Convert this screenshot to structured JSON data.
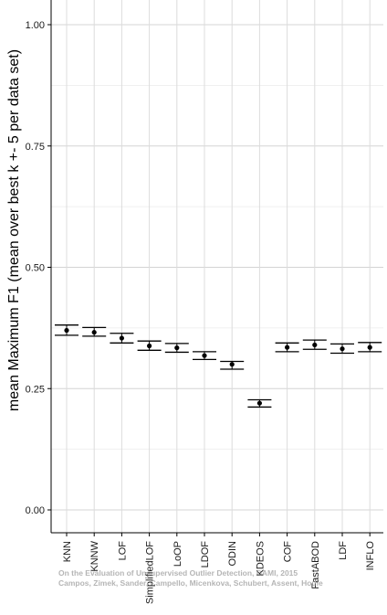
{
  "chart_data": {
    "type": "errorbar",
    "ylabel": "mean Maximum F1 (mean over best k +- 5 per data set)",
    "xlabel": "",
    "ylim": [
      0,
      1.05
    ],
    "yticks": [
      "0.00",
      "0.25",
      "0.50",
      "0.75",
      "1.00"
    ],
    "grid": true,
    "categories": [
      "KNN",
      "KNNW",
      "LOF",
      "SimplifiedLOF",
      "LoOP",
      "LDOF",
      "ODIN",
      "KDEOS",
      "COF",
      "FastABOD",
      "LDF",
      "INFLO"
    ],
    "series": [
      {
        "values": [
          0.37,
          0.366,
          0.354,
          0.338,
          0.334,
          0.318,
          0.3,
          0.22,
          0.335,
          0.34,
          0.332,
          0.335
        ],
        "lower": [
          0.36,
          0.358,
          0.344,
          0.329,
          0.325,
          0.31,
          0.29,
          0.212,
          0.326,
          0.331,
          0.323,
          0.326
        ],
        "upper": [
          0.381,
          0.376,
          0.364,
          0.348,
          0.343,
          0.326,
          0.306,
          0.227,
          0.344,
          0.35,
          0.342,
          0.345
        ]
      }
    ]
  },
  "watermark": {
    "line1": "On the Evaluation of Unsupervised Outlier Detection, DAMI, 2015",
    "line2": "Campos, Zimek, Sander, Campello, Micenkova, Schubert, Assent, Houle"
  }
}
